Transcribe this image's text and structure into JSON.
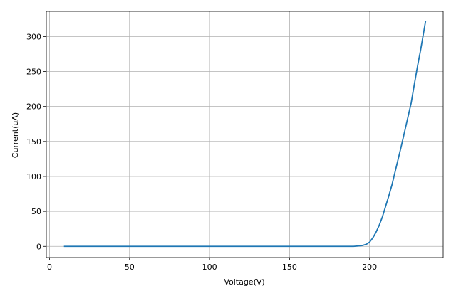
{
  "chart_data": {
    "type": "line",
    "x_label": "Voltage(V)",
    "y_label": "Current(uA)",
    "x": [
      9,
      20,
      40,
      60,
      80,
      100,
      120,
      140,
      160,
      180,
      190,
      195,
      198,
      200,
      202,
      204,
      206,
      208,
      210,
      212,
      214,
      216,
      218,
      220,
      222,
      224,
      226,
      228,
      230,
      232,
      235
    ],
    "series": [
      {
        "name": "Current",
        "color": "#1f77b4",
        "values": [
          0,
          0,
          0,
          0,
          0,
          0,
          0,
          0,
          0,
          0,
          0,
          1,
          3,
          6,
          12,
          20,
          30,
          42,
          57,
          72,
          88,
          107,
          126,
          145,
          165,
          185,
          205,
          232,
          258,
          282,
          322
        ]
      }
    ],
    "xlim": [
      -2,
      246
    ],
    "xticks": [
      0,
      50,
      100,
      150,
      200
    ],
    "ylim": [
      -16,
      336
    ],
    "yticks": [
      0,
      50,
      100,
      150,
      200,
      250,
      300
    ],
    "grid": true
  }
}
